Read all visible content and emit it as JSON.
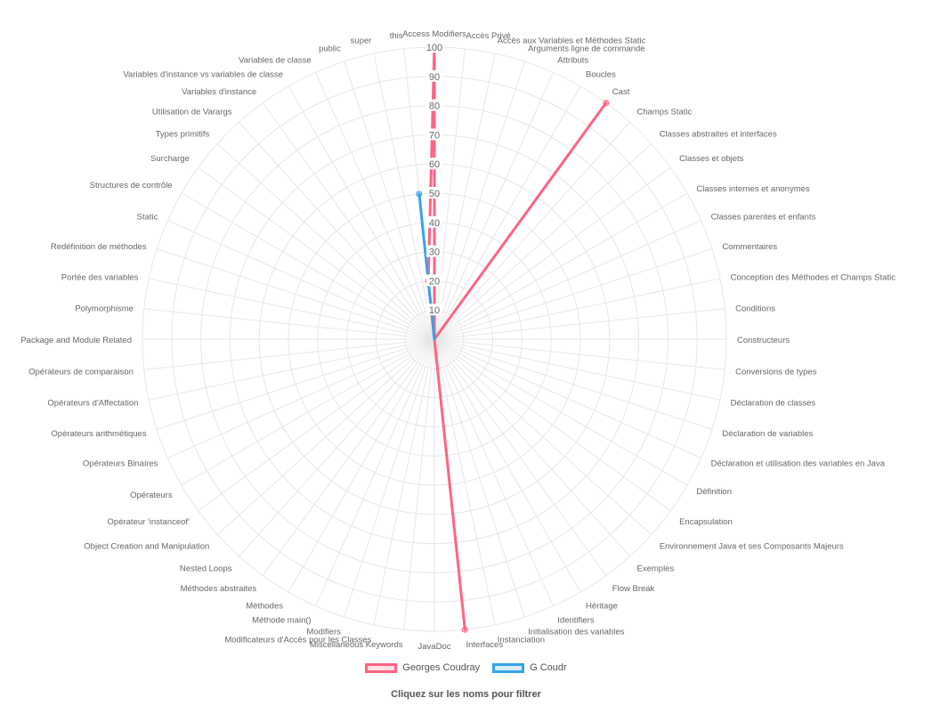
{
  "chart_data": {
    "type": "radar",
    "title": "",
    "r_range": [
      0,
      100
    ],
    "r_ticks": [
      10,
      20,
      30,
      40,
      50,
      60,
      70,
      80,
      90,
      100
    ],
    "grid": true,
    "legend_position": "bottom",
    "categories": [
      "Access Modifiers",
      "Accès Privé",
      "Accès aux Variables et Méthodes Static",
      "Arguments ligne de commande",
      "Attributs",
      "Boucles",
      "Cast",
      "Champs Static",
      "Classes abstraites et interfaces",
      "Classes et objets",
      "Classes internes et anonymes",
      "Classes parentes et enfants",
      "Commentaires",
      "Conception des Méthodes et Champs Static",
      "Conditions",
      "Constructeurs",
      "Conversions de types",
      "Déclaration de classes",
      "Déclaration de variables",
      "Déclaration et utilisation des variables en Java",
      "Définition",
      "Encapsulation",
      "Environnement Java et ses Composants Majeurs",
      "Exemples",
      "Flow Break",
      "Héritage",
      "Identifiers",
      "Initialisation des variables",
      "Instanciation",
      "Interfaces",
      "JavaDoc",
      "Miscellaneous Keywords",
      "Modificateurs d'Accès pour les Classes",
      "Modifiers",
      "Méthode main()",
      "Méthodes",
      "Méthodes abstraites",
      "Nested Loops",
      "Object Creation and Manipulation",
      "Opérateur 'instanceof'",
      "Opérateurs",
      "Opérateurs Binaires",
      "Opérateurs arithmétiques",
      "Opérateurs d'Affectation",
      "Opérateurs de comparaison",
      "Package and Module Related",
      "Polymorphisme",
      "Portée des variables",
      "Redéfinition de méthodes",
      "Static",
      "Structures de contrôle",
      "Surcharge",
      "Types primitifs",
      "Utilisation de Varargs",
      "Variables d'instance",
      "Variables d'instance vs variables de classe",
      "Variables de classe",
      "public",
      "super",
      "this"
    ],
    "series": [
      {
        "name": "Georges Coudray",
        "color": "#ff6384",
        "values": [
          100,
          0,
          0,
          0,
          0,
          0,
          100,
          0,
          0,
          0,
          0,
          0,
          0,
          0,
          0,
          0,
          0,
          0,
          0,
          0,
          0,
          0,
          0,
          0,
          0,
          0,
          0,
          0,
          0,
          100,
          0,
          0,
          0,
          0,
          0,
          0,
          0,
          0,
          0,
          0,
          0,
          0,
          0,
          0,
          0,
          0,
          0,
          0,
          0,
          0,
          0,
          0,
          0,
          0,
          0,
          0,
          0,
          0,
          0,
          20
        ]
      },
      {
        "name": "G Coudr",
        "color": "#36a2eb",
        "values": [
          0,
          0,
          0,
          0,
          0,
          0,
          0,
          0,
          0,
          0,
          0,
          0,
          0,
          0,
          0,
          0,
          0,
          0,
          0,
          0,
          0,
          0,
          0,
          0,
          0,
          0,
          0,
          0,
          0,
          0,
          0,
          0,
          0,
          0,
          0,
          0,
          0,
          0,
          0,
          0,
          0,
          0,
          0,
          0,
          0,
          0,
          0,
          0,
          0,
          0,
          0,
          0,
          0,
          0,
          0,
          0,
          0,
          0,
          0,
          50
        ]
      }
    ]
  },
  "legend": {
    "hint": "Cliquez sur les noms pour filtrer"
  }
}
